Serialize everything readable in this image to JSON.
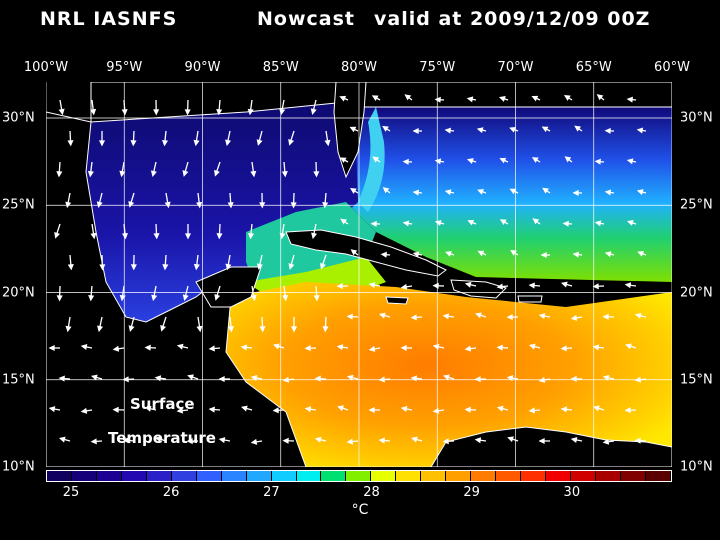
{
  "header": {
    "left": "NRL IASNFS",
    "middle": "Nowcast",
    "right": "valid at 2009/12/09 00Z"
  },
  "lon_labels": [
    "100°W",
    "95°W",
    "90°W",
    "85°W",
    "80°W",
    "75°W",
    "70°W",
    "65°W",
    "60°W"
  ],
  "lat_labels": [
    "30°N",
    "25°N",
    "20°N",
    "15°N",
    "10°N"
  ],
  "overlay": {
    "line1": "Surface",
    "line2": "Temperature"
  },
  "colorbar": {
    "ticks": [
      "25",
      "26",
      "27",
      "28",
      "29",
      "30"
    ],
    "unit": "°C",
    "colors": [
      "#100060",
      "#16007a",
      "#1c0094",
      "#2208b0",
      "#2a20c8",
      "#3040e0",
      "#3060ff",
      "#2a84ff",
      "#20a8ff",
      "#10ccff",
      "#00eef0",
      "#00e070",
      "#80f000",
      "#e8ff00",
      "#ffe000",
      "#ffc000",
      "#ffa000",
      "#ff7c00",
      "#ff5a00",
      "#ff3000",
      "#f00000",
      "#d00000",
      "#a80000",
      "#800000",
      "#5a0000"
    ]
  },
  "colors": {
    "background": "#000000",
    "deep_gulf": "#1a10a0",
    "warm_caribbean": "#ff9a00",
    "land": "#000000",
    "grid": "#ffffff"
  }
}
